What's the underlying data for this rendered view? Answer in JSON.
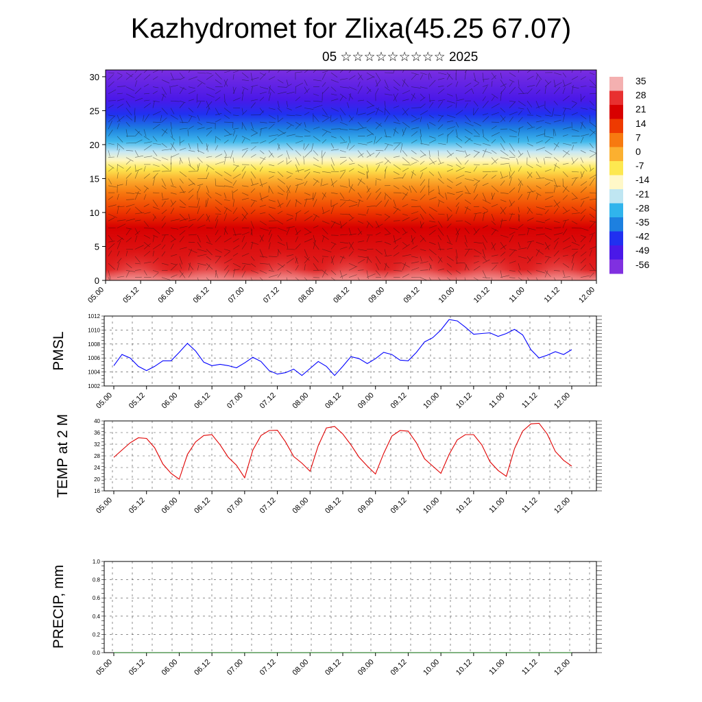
{
  "title": "Kazhydromet for Zlixa(45.25 67.07)",
  "subtitle": "05 ☆☆☆☆☆☆☆☆☆ 2025",
  "chart_data": [
    {
      "type": "heatmap",
      "x_tick_labels": [
        "05.00",
        "05.12",
        "06.00",
        "06.12",
        "07.00",
        "07.12",
        "08.00",
        "08.12",
        "09.00",
        "09.12",
        "10.00",
        "10.12",
        "11.00",
        "11.12",
        "12.00"
      ],
      "y_tick_labels": [
        "0",
        "5",
        "10",
        "15",
        "20",
        "25",
        "30"
      ],
      "ylim": [
        0,
        31
      ],
      "colorbar_labels": [
        "35",
        "28",
        "21",
        "14",
        "7",
        "0",
        "-7",
        "-14",
        "-21",
        "-28",
        "-35",
        "-42",
        "-49",
        "-56"
      ],
      "colorbar_colors": [
        "#f4b0b0",
        "#e83030",
        "#d80000",
        "#ee3a00",
        "#f77a10",
        "#fbb030",
        "#fde850",
        "#fff8c8",
        "#bfe6f2",
        "#30b4ec",
        "#1d80e0",
        "#2030f0",
        "#4a18e8",
        "#8030e0"
      ]
    },
    {
      "type": "line",
      "ylabel": "PMSL",
      "y_tick_labels": [
        "1012",
        "1010",
        "1008",
        "1006",
        "1004",
        "1002"
      ],
      "ylim": [
        1002,
        1012
      ],
      "x_tick_labels": [
        "05.00",
        "05.12",
        "06.00",
        "06.12",
        "07.00",
        "07.12",
        "08.00",
        "08.12",
        "09.00",
        "09.12",
        "10.00",
        "10.12",
        "11.00",
        "11.12",
        "12.00"
      ],
      "color": "#0000ff",
      "values": [
        1004.9,
        1006.5,
        1006.0,
        1004.8,
        1004.2,
        1004.8,
        1005.6,
        1005.6,
        1006.8,
        1008.1,
        1007.0,
        1005.4,
        1004.9,
        1005.1,
        1004.9,
        1004.6,
        1005.3,
        1006.1,
        1005.5,
        1004.2,
        1003.7,
        1003.9,
        1004.4,
        1003.5,
        1004.5,
        1005.5,
        1004.8,
        1003.5,
        1004.8,
        1006.2,
        1005.9,
        1005.2,
        1005.9,
        1006.8,
        1006.5,
        1005.7,
        1005.6,
        1006.8,
        1008.3,
        1008.9,
        1010.0,
        1011.5,
        1011.3,
        1010.4,
        1009.4,
        1009.5,
        1009.6,
        1009.1,
        1009.5,
        1010.1,
        1009.3,
        1007.2,
        1006.0,
        1006.4,
        1006.9,
        1006.5,
        1007.2
      ]
    },
    {
      "type": "line",
      "ylabel": "TEMP at 2 M",
      "y_tick_labels": [
        "40",
        "36",
        "32",
        "28",
        "24",
        "20",
        "16"
      ],
      "ylim": [
        16,
        40
      ],
      "x_tick_labels": [
        "05.00",
        "05.12",
        "06.00",
        "06.12",
        "07.00",
        "07.12",
        "08.00",
        "08.12",
        "09.00",
        "09.12",
        "10.00",
        "10.12",
        "11.00",
        "11.12",
        "12.00"
      ],
      "color": "#e00000",
      "values": [
        27.5,
        30.0,
        32.5,
        34.2,
        34.0,
        30.8,
        25.2,
        22.0,
        20.0,
        28.5,
        32.8,
        35.0,
        35.3,
        31.8,
        27.5,
        24.8,
        20.5,
        30.0,
        35.0,
        36.7,
        36.8,
        32.8,
        27.8,
        25.5,
        22.7,
        31.5,
        37.6,
        38.1,
        35.5,
        31.8,
        27.5,
        24.5,
        21.8,
        28.8,
        34.8,
        36.7,
        36.5,
        32.5,
        27.0,
        24.5,
        22.0,
        28.5,
        33.5,
        35.3,
        35.3,
        31.8,
        26.0,
        23.0,
        21.0,
        30.5,
        36.5,
        39.0,
        39.2,
        35.5,
        29.5,
        26.5,
        24.5
      ]
    },
    {
      "type": "line",
      "ylabel": "PRECIP, mm",
      "y_tick_labels": [
        "1.0",
        "0.8",
        "0.6",
        "0.4",
        "0.2",
        "0.0"
      ],
      "ylim": [
        0,
        1
      ],
      "x_tick_labels": [
        "05.00",
        "05.12",
        "06.00",
        "06.12",
        "07.00",
        "07.12",
        "08.00",
        "08.12",
        "09.00",
        "09.12",
        "10.00",
        "10.12",
        "11.00",
        "11.12",
        "12.00"
      ],
      "color": "#006400",
      "values": [
        0,
        0,
        0,
        0,
        0,
        0,
        0,
        0,
        0,
        0,
        0,
        0,
        0,
        0,
        0,
        0,
        0,
        0,
        0,
        0,
        0,
        0,
        0,
        0,
        0,
        0,
        0,
        0,
        0,
        0,
        0,
        0,
        0,
        0,
        0,
        0,
        0,
        0,
        0,
        0,
        0,
        0,
        0,
        0,
        0,
        0,
        0,
        0,
        0,
        0,
        0,
        0,
        0,
        0,
        0,
        0,
        0
      ]
    }
  ]
}
